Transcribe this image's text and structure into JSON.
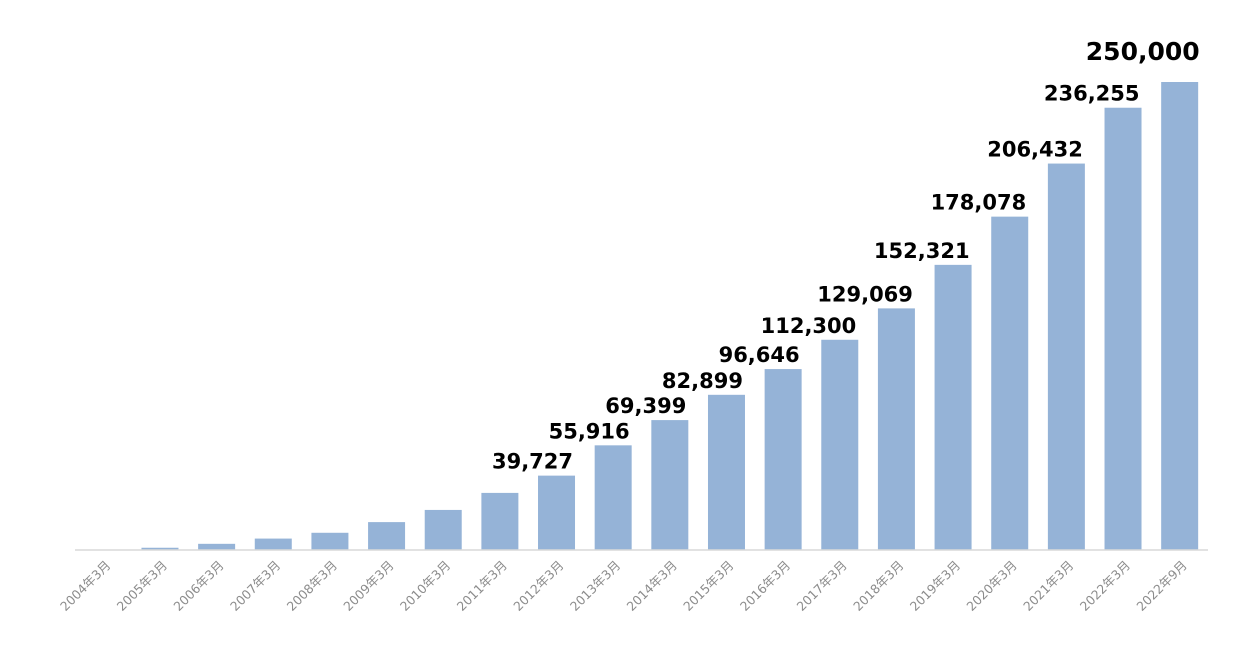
{
  "chart_data": {
    "type": "bar",
    "categories": [
      "2004年3月",
      "2005年3月",
      "2006年3月",
      "2007年3月",
      "2008年3月",
      "2009年3月",
      "2010年3月",
      "2011年3月",
      "2012年3月",
      "2013年3月",
      "2014年3月",
      "2015年3月",
      "2016年3月",
      "2017年3月",
      "2018年3月",
      "2019年3月",
      "2020年3月",
      "2021年3月",
      "2022年3月",
      "2022年9月"
    ],
    "values": [
      0,
      1200,
      3300,
      6100,
      9200,
      14900,
      21400,
      30500,
      39727,
      55916,
      69399,
      82899,
      96646,
      112300,
      129069,
      152321,
      178078,
      206432,
      236255,
      250000
    ],
    "data_labels": [
      "",
      "",
      "",
      "",
      "",
      "",
      "",
      "",
      "39,727",
      "55,916",
      "69,399",
      "82,899",
      "96,646",
      "112,300",
      "129,069",
      "152,321",
      "178,078",
      "206,432",
      "236,255",
      "250,000"
    ],
    "highlight_index": 19,
    "bar_color": "#95B3D7",
    "label_color": "#000000",
    "tick_color": "#8C8C8C",
    "axis_color": "#D9D9D9",
    "ylim": [
      0,
      250000
    ],
    "grid": false,
    "legend": "none",
    "title": "",
    "xlabel": "",
    "ylabel": ""
  }
}
